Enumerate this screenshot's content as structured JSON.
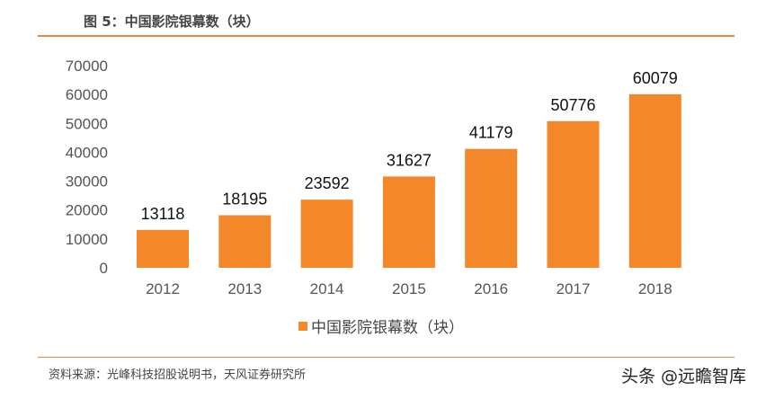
{
  "title": "图 5：中国影院银幕数（块）",
  "source": "资料来源：光峰科技招股说明书，天风证券研究所",
  "watermark": "头条 @远瞻智库",
  "chart_data": {
    "type": "bar",
    "title": "图 5：中国影院银幕数（块）",
    "categories": [
      "2012",
      "2013",
      "2014",
      "2015",
      "2016",
      "2017",
      "2018"
    ],
    "series": [
      {
        "name": "中国影院银幕数（块）",
        "values": [
          13118,
          18195,
          23592,
          31627,
          41179,
          50776,
          60079
        ]
      }
    ],
    "ylim": [
      0,
      70000
    ],
    "yticks": [
      0,
      10000,
      20000,
      30000,
      40000,
      50000,
      60000,
      70000
    ],
    "grid": false,
    "legend": "bottom",
    "color": "#f5872b"
  }
}
